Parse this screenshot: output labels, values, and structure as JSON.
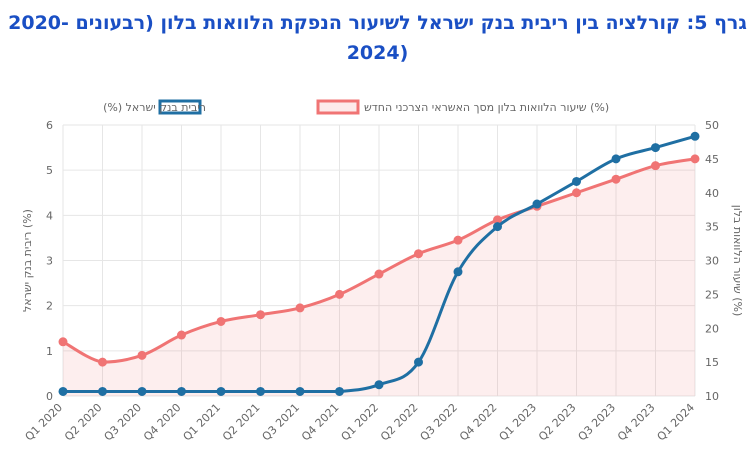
{
  "chart_data": {
    "type": "line",
    "title_line1": "גרף 5: קורלציה בין ריבית בנק ישראל לשיעור הנפקת הלוואות בלון (רבעונים -2020",
    "title_line2": "(2024",
    "categories": [
      "Q1 2020",
      "Q2 2020",
      "Q3 2020",
      "Q4 2020",
      "Q1 2021",
      "Q2 2021",
      "Q3 2021",
      "Q4 2021",
      "Q1 2022",
      "Q2 2022",
      "Q3 2022",
      "Q4 2022",
      "Q1 2023",
      "Q2 2023",
      "Q3 2023",
      "Q4 2023",
      "Q1 2024"
    ],
    "series": [
      {
        "name": "שיעור הלוואות בלון מסך האשראי הצרכני החדש (%)",
        "axis": "right",
        "color": "#f07474",
        "fill": "rgba(240,116,116,0.12)",
        "values": [
          18,
          15,
          16,
          19,
          21,
          22,
          23,
          25,
          28,
          31,
          33,
          36,
          38,
          40,
          42,
          44,
          45
        ]
      },
      {
        "name": "ריבית בנק ישראל (%)",
        "axis": "left",
        "color": "#1f6fa3",
        "fill": "none",
        "values": [
          0.1,
          0.1,
          0.1,
          0.1,
          0.1,
          0.1,
          0.1,
          0.1,
          0.25,
          0.75,
          2.75,
          3.75,
          4.25,
          4.75,
          5.25,
          5.5,
          5.75
        ]
      }
    ],
    "left_axis": {
      "label": "ריבית בנק ישראל (%)",
      "ticks": [
        "0",
        "1",
        "2",
        "3",
        "4",
        "5",
        "6"
      ],
      "min": 0,
      "max": 6
    },
    "right_axis": {
      "label": "שיעור הלוואות בלון (%)",
      "ticks": [
        "10",
        "15",
        "20",
        "25",
        "30",
        "35",
        "40",
        "45",
        "50"
      ],
      "min": 10,
      "max": 50
    },
    "legend_position": "top-center",
    "grid": true
  }
}
